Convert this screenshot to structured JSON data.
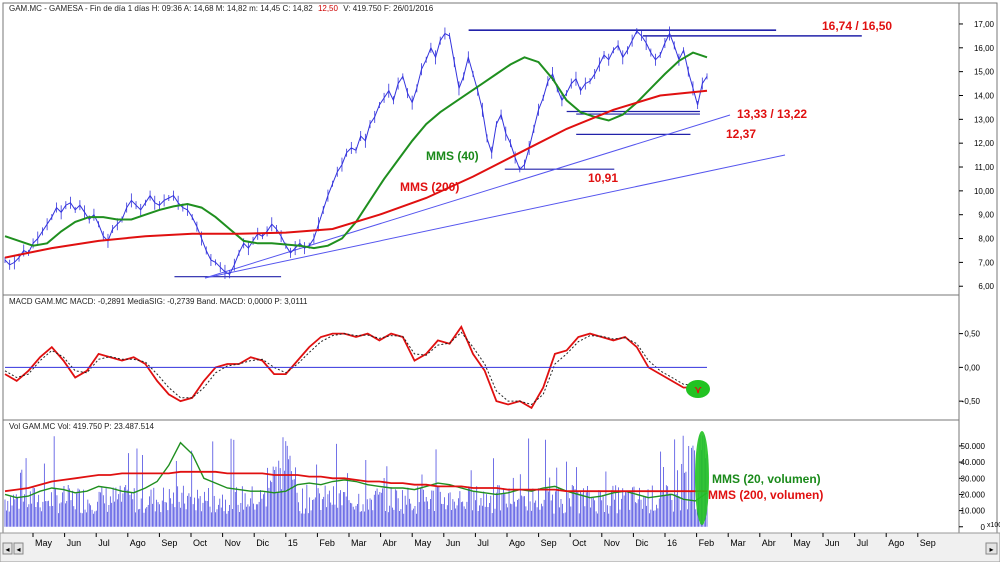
{
  "chart_data": [
    {
      "type": "line",
      "panel": "price",
      "header": "GAM.MC - GAMESA - Fin de día 1 días H: 09:36 A: 14,68 M: 14,82 m: 14,45 C: 14,82",
      "header_var": "12,50",
      "header_tail": "V: 419.750 F: 26/01/2016",
      "y_ticks": [
        "17,00",
        "16,00",
        "15,00",
        "14,00",
        "13,00",
        "12,00",
        "11,00",
        "10,00",
        "9,00",
        "8,00",
        "7,00",
        "6,00"
      ],
      "ylim": [
        5.8,
        17.25
      ],
      "grid": false,
      "series": [
        {
          "name": "GAM.MC",
          "color": "#3333dd",
          "x": [
            0,
            10,
            20,
            30,
            40,
            50,
            60,
            70,
            80,
            90,
            100,
            110,
            120,
            130,
            140,
            150,
            160,
            170,
            180,
            190,
            200,
            210,
            220,
            230,
            240,
            250,
            260,
            270,
            280,
            290,
            300,
            310,
            320,
            330,
            340,
            350,
            360,
            370,
            380,
            390,
            400,
            410,
            420,
            430,
            440,
            450,
            460,
            470,
            480,
            490,
            500,
            510,
            520,
            530,
            540,
            550,
            560,
            570,
            580,
            590,
            600,
            610,
            620,
            630,
            640,
            650,
            660,
            670,
            680,
            690,
            700,
            710,
            720,
            730,
            740,
            750,
            760,
            770,
            780,
            790,
            800,
            810,
            820,
            830,
            840,
            850,
            860,
            870,
            880,
            890,
            900,
            910,
            920,
            930,
            940,
            950,
            960,
            970,
            980,
            990,
            1000,
            1010,
            1020,
            1030,
            1040,
            1050,
            1060,
            1070,
            1080,
            1090,
            1100,
            1110,
            1120,
            1130,
            1140,
            1150,
            1160,
            1170,
            1180,
            1190,
            1200,
            1210,
            1220,
            1230,
            1240,
            1250,
            1260,
            1270,
            1280,
            1290,
            1300,
            1310,
            1320,
            1330,
            1340,
            1350,
            1360,
            1370,
            1380,
            1390,
            1400,
            1410,
            1420,
            1430,
            1440,
            1450,
            1460,
            1470,
            1480,
            1490,
            1500
          ],
          "y": [
            7.1,
            6.9,
            7.0,
            7.2,
            7.5,
            7.4,
            7.8,
            8.0,
            8.3,
            8.6,
            8.9,
            9.3,
            9.1,
            9.4,
            9.5,
            9.2,
            9.4,
            9.1,
            8.8,
            9.0,
            8.6,
            8.1,
            7.9,
            8.4,
            8.6,
            8.8,
            9.3,
            9.6,
            9.4,
            9.2,
            9.5,
            9.8,
            9.5,
            9.4,
            9.6,
            9.7,
            9.8,
            9.5,
            9.3,
            9.2,
            8.9,
            8.5,
            8.0,
            7.5,
            7.1,
            7.0,
            6.8,
            6.6,
            6.5,
            6.9,
            7.4,
            7.8,
            7.6,
            7.9,
            8.2,
            8.1,
            8.3,
            8.6,
            8.4,
            8.1,
            7.7,
            7.4,
            7.6,
            7.8,
            7.6,
            7.7,
            8.0,
            8.6,
            9.2,
            9.8,
            10.3,
            10.8,
            11.1,
            11.6,
            11.8,
            11.7,
            12.3,
            12.1,
            12.8,
            13.1,
            13.6,
            13.9,
            14.2,
            13.8,
            14.5,
            14.8,
            14.1,
            13.7,
            14.3,
            15.1,
            15.5,
            16.0,
            15.6,
            16.3,
            16.6,
            16.5,
            15.4,
            14.3,
            14.8,
            15.6,
            14.9,
            14.2,
            13.4,
            12.2,
            11.6,
            12.8,
            13.2,
            12.4,
            12.0,
            11.4,
            10.9,
            11.1,
            11.8,
            12.6,
            13.4,
            13.9,
            14.6,
            14.9,
            14.3,
            13.8,
            14.1,
            14.5,
            14.7,
            14.2,
            14.5,
            14.6,
            14.9,
            15.3,
            15.7,
            15.5,
            15.9,
            16.1,
            15.6,
            15.9,
            16.3,
            16.7,
            16.5,
            16.2,
            15.8,
            15.5,
            15.7,
            16.2,
            16.6,
            16.1,
            15.5,
            15.9,
            15.0,
            14.3,
            13.6,
            14.5,
            14.8
          ]
        },
        {
          "name": "MMS (40)",
          "color": "#1f8f1f",
          "x": [
            0,
            30,
            60,
            90,
            120,
            150,
            180,
            210,
            240,
            270,
            300,
            330,
            360,
            390,
            420,
            450,
            480,
            510,
            540,
            570,
            600,
            630,
            660,
            690,
            720,
            750,
            780,
            810,
            840,
            870,
            900,
            930,
            960,
            990,
            1020,
            1050,
            1080,
            1110,
            1140,
            1170,
            1200,
            1230,
            1260,
            1290,
            1320,
            1350,
            1380,
            1410,
            1440,
            1470,
            1500
          ],
          "y": [
            8.1,
            7.9,
            7.7,
            7.8,
            8.3,
            8.7,
            8.9,
            8.9,
            8.8,
            8.8,
            9.0,
            9.2,
            9.35,
            9.45,
            9.3,
            8.9,
            8.4,
            7.9,
            7.8,
            7.8,
            7.75,
            7.7,
            7.6,
            7.7,
            8.0,
            8.7,
            9.6,
            10.5,
            11.3,
            12.1,
            12.8,
            13.3,
            13.7,
            14.1,
            14.5,
            14.9,
            15.3,
            15.6,
            15.4,
            14.7,
            13.8,
            13.3,
            13.1,
            12.95,
            13.2,
            13.7,
            14.3,
            14.9,
            15.45,
            15.8,
            15.6
          ]
        },
        {
          "name": "MMS (200)",
          "color": "#e01010",
          "x": [
            0,
            100,
            200,
            300,
            400,
            500,
            600,
            700,
            800,
            900,
            1000,
            1100,
            1200,
            1300,
            1400,
            1500
          ],
          "y": [
            7.2,
            7.6,
            7.9,
            8.1,
            8.2,
            8.2,
            8.25,
            8.4,
            9.0,
            9.7,
            10.6,
            11.6,
            12.6,
            13.4,
            14.0,
            14.2
          ]
        }
      ],
      "annotations": [
        {
          "text": "16,74 / 16,50",
          "color": "#e01010"
        },
        {
          "text": "13,33 / 13,22",
          "color": "#e01010"
        },
        {
          "text": "12,37",
          "color": "#e01010"
        },
        {
          "text": "10,91",
          "color": "#e01010"
        },
        {
          "text": "MMS (40)",
          "color": "#1a8a1a"
        },
        {
          "text": "MMS (200)",
          "color": "#e01010"
        }
      ],
      "hlines": [
        {
          "y": 16.74,
          "color": "#2222aa",
          "from": 0.487,
          "to": 0.81
        },
        {
          "y": 16.5,
          "color": "#2222aa",
          "from": 0.67,
          "to": 0.9
        },
        {
          "y": 13.33,
          "color": "#2222aa",
          "from": 0.59,
          "to": 0.73
        },
        {
          "y": 13.22,
          "color": "#2222aa",
          "from": 0.6,
          "to": 0.73
        },
        {
          "y": 12.37,
          "color": "#2222aa",
          "from": 0.6,
          "to": 0.72
        },
        {
          "y": 10.91,
          "color": "#2222aa",
          "from": 0.525,
          "to": 0.64
        },
        {
          "y": 6.4,
          "color": "#2222aa",
          "from": 0.178,
          "to": 0.29
        }
      ]
    },
    {
      "type": "line",
      "panel": "macd",
      "header": "MACD GAM.MC MACD: -0,2891 MediaSIG: -0,2739 Band. MACD: 0,0000 P: 3,0111",
      "y_ticks": [
        "0,50",
        "0,00",
        "-0,50"
      ],
      "ylim": [
        -0.72,
        0.82
      ],
      "series": [
        {
          "name": "MACD",
          "color": "#e01010",
          "x": [
            0,
            25,
            50,
            75,
            100,
            125,
            150,
            175,
            200,
            225,
            250,
            275,
            300,
            325,
            350,
            375,
            400,
            425,
            450,
            475,
            500,
            525,
            550,
            575,
            600,
            625,
            650,
            675,
            700,
            725,
            750,
            775,
            800,
            825,
            850,
            875,
            900,
            925,
            950,
            975,
            1000,
            1025,
            1050,
            1075,
            1100,
            1125,
            1150,
            1175,
            1200,
            1225,
            1250,
            1275,
            1300,
            1325,
            1350,
            1375,
            1400,
            1425,
            1450,
            1475,
            1500
          ],
          "y": [
            -0.1,
            -0.2,
            -0.05,
            0.15,
            0.3,
            0.1,
            -0.15,
            -0.05,
            0.2,
            0.15,
            0.1,
            0.15,
            0.05,
            -0.2,
            -0.4,
            -0.5,
            -0.45,
            -0.2,
            0.0,
            0.05,
            0.05,
            0.15,
            0.1,
            -0.1,
            -0.1,
            0.1,
            0.3,
            0.45,
            0.5,
            0.5,
            0.45,
            0.5,
            0.4,
            0.5,
            0.45,
            0.1,
            0.2,
            0.4,
            0.35,
            0.6,
            0.2,
            -0.05,
            -0.5,
            -0.55,
            -0.5,
            -0.6,
            -0.3,
            0.2,
            0.25,
            0.45,
            0.5,
            0.45,
            0.4,
            0.45,
            0.3,
            0.0,
            -0.1,
            -0.2,
            -0.3,
            -0.29,
            -0.29
          ]
        },
        {
          "name": "MediaSIG",
          "color": "#222222",
          "dashed": true,
          "x": [
            0,
            25,
            50,
            75,
            100,
            125,
            150,
            175,
            200,
            225,
            250,
            275,
            300,
            325,
            350,
            375,
            400,
            425,
            450,
            475,
            500,
            525,
            550,
            575,
            600,
            625,
            650,
            675,
            700,
            725,
            750,
            775,
            800,
            825,
            850,
            875,
            900,
            925,
            950,
            975,
            1000,
            1025,
            1050,
            1075,
            1100,
            1125,
            1150,
            1175,
            1200,
            1225,
            1250,
            1275,
            1300,
            1325,
            1350,
            1375,
            1400,
            1425,
            1450,
            1475,
            1500
          ],
          "y": [
            -0.05,
            -0.15,
            -0.1,
            0.1,
            0.25,
            0.15,
            -0.05,
            -0.08,
            0.12,
            0.16,
            0.12,
            0.12,
            0.08,
            -0.1,
            -0.3,
            -0.45,
            -0.45,
            -0.3,
            -0.08,
            0.02,
            0.05,
            0.1,
            0.12,
            0.0,
            -0.08,
            0.05,
            0.22,
            0.38,
            0.47,
            0.5,
            0.47,
            0.48,
            0.43,
            0.47,
            0.46,
            0.2,
            0.18,
            0.33,
            0.36,
            0.52,
            0.3,
            0.05,
            -0.35,
            -0.5,
            -0.5,
            -0.55,
            -0.4,
            0.05,
            0.2,
            0.38,
            0.47,
            0.46,
            0.42,
            0.44,
            0.35,
            0.1,
            -0.05,
            -0.15,
            -0.25,
            -0.27,
            -0.27
          ]
        },
        {
          "name": "Band. MACD",
          "color": "#3333dd",
          "constant": 0.0
        }
      ]
    },
    {
      "type": "bar",
      "panel": "volume",
      "header": "Vol GAM.MC Vol: 419.750 P: 23.487.514",
      "y_ticks": [
        "50.000",
        "40.000",
        "30.000",
        "20.000",
        "10.000",
        "0"
      ],
      "ylim": [
        -2,
        58
      ],
      "corner_label": "x100",
      "series": [
        {
          "name": "Vol",
          "color": "#3333dd"
        },
        {
          "name": "MMS (20, volumen)",
          "color": "#1f8f1f"
        },
        {
          "name": "MMS (200, volumen)",
          "color": "#e01010"
        }
      ]
    }
  ],
  "ann_labels": {
    "resistance": "16,74 / 16,50",
    "support1": "13,33 / 13,22",
    "support2": "12,37",
    "support3": "10,91",
    "mms40": "MMS (40)",
    "mms200": "MMS (200)",
    "vol20": "MMS (20, volumen)",
    "vol200": "MMS (200, volumen)"
  },
  "x_axis": [
    "May",
    "Jun",
    "Jul",
    "Ago",
    "Sep",
    "Oct",
    "Nov",
    "Dic",
    "15",
    "Feb",
    "Mar",
    "Abr",
    "May",
    "Jun",
    "Jul",
    "Ago",
    "Sep",
    "Oct",
    "Nov",
    "Dic",
    "16",
    "Feb",
    "Mar",
    "Abr",
    "May",
    "Jun",
    "Jul",
    "Ago",
    "Sep"
  ],
  "colors": {
    "price": "#3333dd",
    "mms40": "#1f8f1f",
    "mms200": "#e01010",
    "trend": "#5555ee",
    "hilite": "#22c322"
  }
}
